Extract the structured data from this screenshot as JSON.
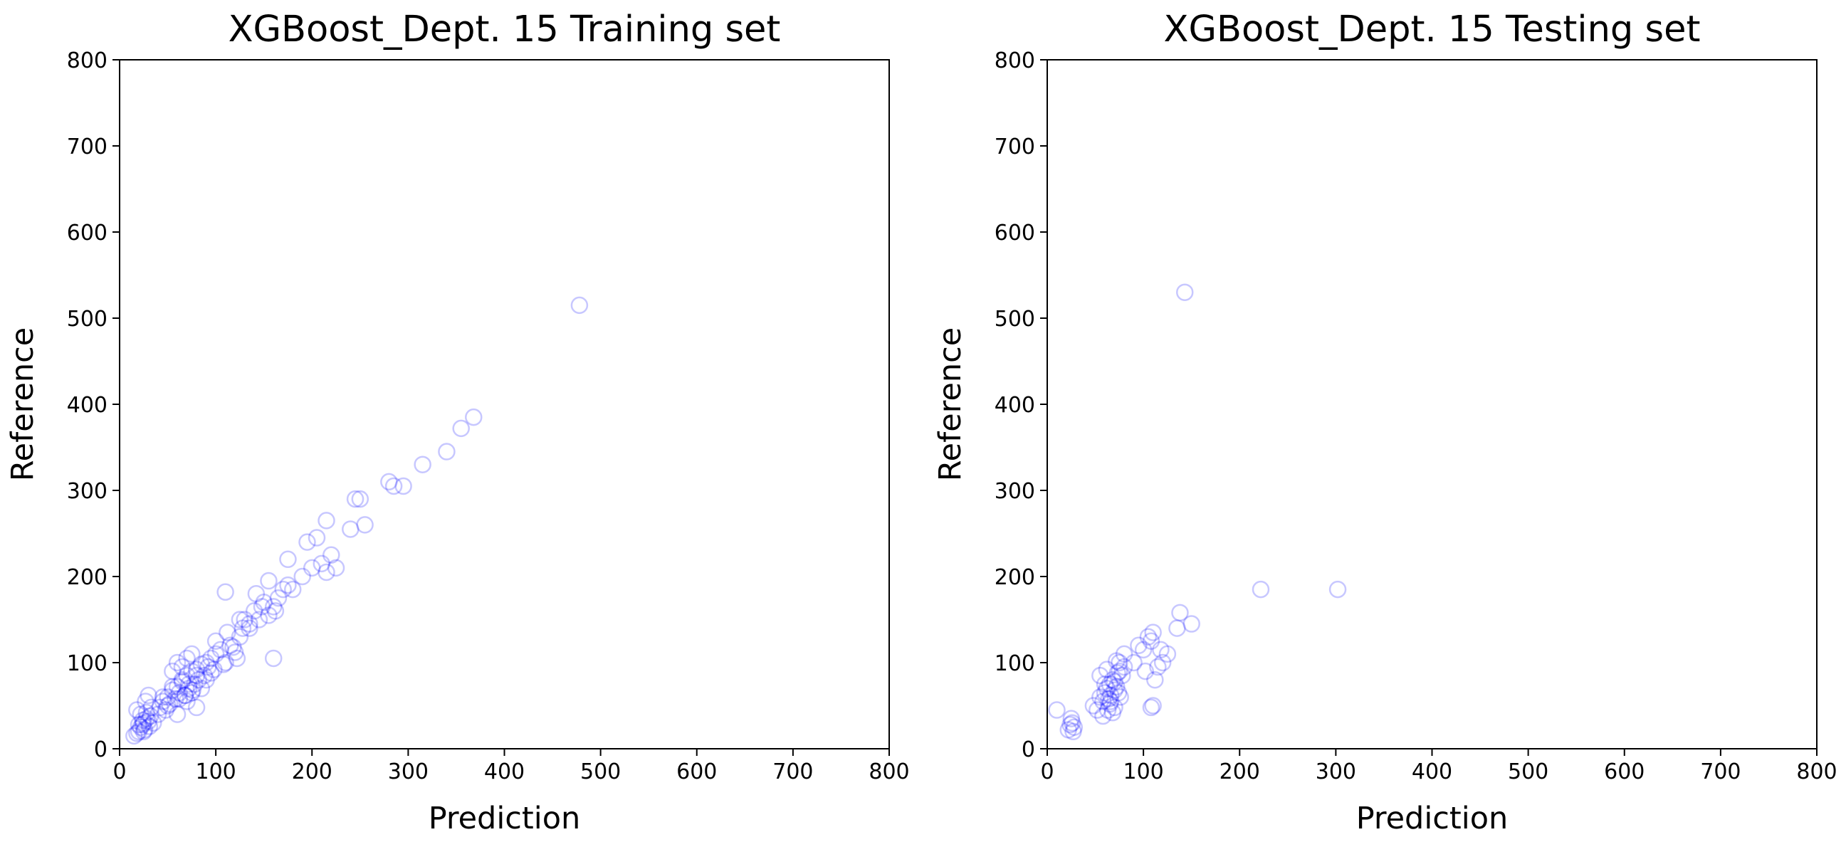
{
  "chart_data": [
    {
      "type": "scatter",
      "title": "XGBoost_Dept. 15 Training set",
      "xlabel": "Prediction",
      "ylabel": "Reference",
      "xlim": [
        0,
        800
      ],
      "ylim": [
        0,
        800
      ],
      "xticks": [
        "0",
        "100",
        "200",
        "300",
        "400",
        "500",
        "600",
        "700",
        "800"
      ],
      "yticks": [
        "0",
        "100",
        "200",
        "300",
        "400",
        "500",
        "600",
        "700",
        "800"
      ],
      "grid": false,
      "marker": "open-circle",
      "color": "#0000ff",
      "x": [
        15,
        18,
        20,
        22,
        24,
        25,
        26,
        28,
        30,
        32,
        18,
        22,
        27,
        30,
        20,
        24,
        28,
        31,
        33,
        25,
        35,
        40,
        42,
        45,
        48,
        50,
        52,
        55,
        58,
        60,
        62,
        65,
        68,
        70,
        72,
        75,
        78,
        80,
        82,
        85,
        88,
        90,
        45,
        50,
        55,
        60,
        65,
        70,
        75,
        80,
        85,
        55,
        60,
        65,
        70,
        75,
        80,
        62,
        68,
        72,
        76,
        92,
        95,
        98,
        100,
        105,
        110,
        115,
        120,
        125,
        100,
        108,
        112,
        118,
        122,
        128,
        90,
        95,
        130,
        135,
        140,
        145,
        150,
        155,
        160,
        165,
        170,
        175,
        135,
        142,
        148,
        155,
        162,
        125,
        160,
        180,
        190,
        200,
        210,
        215,
        220,
        225,
        195,
        205,
        110,
        175,
        215,
        240,
        245,
        250,
        255,
        280,
        285,
        295,
        315,
        340,
        355,
        368,
        478
      ],
      "y": [
        15,
        18,
        20,
        25,
        28,
        30,
        22,
        35,
        32,
        38,
        45,
        40,
        55,
        62,
        28,
        33,
        42,
        26,
        48,
        20,
        30,
        40,
        48,
        55,
        45,
        60,
        52,
        68,
        58,
        72,
        65,
        80,
        62,
        85,
        70,
        90,
        75,
        92,
        80,
        98,
        85,
        100,
        60,
        50,
        72,
        40,
        78,
        55,
        65,
        48,
        70,
        90,
        100,
        95,
        105,
        110,
        85,
        58,
        62,
        75,
        68,
        95,
        105,
        92,
        110,
        115,
        100,
        120,
        112,
        130,
        125,
        98,
        135,
        118,
        105,
        140,
        80,
        88,
        150,
        140,
        160,
        150,
        170,
        155,
        165,
        175,
        185,
        190,
        145,
        180,
        165,
        195,
        160,
        150,
        105,
        185,
        200,
        210,
        215,
        205,
        225,
        210,
        240,
        245,
        182,
        220,
        265,
        255,
        290,
        290,
        260,
        310,
        305,
        305,
        330,
        345,
        372,
        385,
        515
      ]
    },
    {
      "type": "scatter",
      "title": "XGBoost_Dept. 15 Testing set",
      "xlabel": "Prediction",
      "ylabel": "Reference",
      "xlim": [
        0,
        800
      ],
      "ylim": [
        0,
        800
      ],
      "xticks": [
        "0",
        "100",
        "200",
        "300",
        "400",
        "500",
        "600",
        "700",
        "800"
      ],
      "yticks": [
        "0",
        "100",
        "200",
        "300",
        "400",
        "500",
        "600",
        "700",
        "800"
      ],
      "grid": false,
      "marker": "open-circle",
      "color": "#0000ff",
      "x": [
        10,
        22,
        24,
        26,
        28,
        25,
        27,
        48,
        52,
        55,
        58,
        60,
        62,
        64,
        65,
        66,
        68,
        70,
        72,
        74,
        75,
        78,
        80,
        55,
        60,
        65,
        70,
        75,
        80,
        58,
        63,
        68,
        73,
        76,
        62,
        66,
        70,
        72,
        90,
        95,
        100,
        102,
        105,
        108,
        110,
        112,
        115,
        118,
        120,
        125,
        108,
        110,
        135,
        138,
        150,
        143,
        222,
        302
      ],
      "y": [
        45,
        22,
        28,
        30,
        25,
        35,
        20,
        50,
        45,
        60,
        55,
        65,
        70,
        58,
        75,
        62,
        80,
        68,
        72,
        65,
        90,
        85,
        95,
        85,
        75,
        52,
        48,
        100,
        110,
        38,
        45,
        42,
        88,
        60,
        92,
        55,
        78,
        102,
        100,
        120,
        115,
        90,
        130,
        125,
        135,
        80,
        95,
        115,
        100,
        110,
        48,
        50,
        140,
        158,
        145,
        530,
        185,
        185
      ]
    }
  ]
}
